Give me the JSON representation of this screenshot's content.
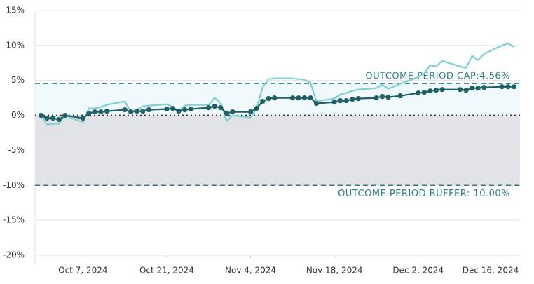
{
  "chart_data": {
    "type": "line",
    "x": [
      "2024-09-30",
      "2024-10-01",
      "2024-10-02",
      "2024-10-03",
      "2024-10-04",
      "2024-10-07",
      "2024-10-08",
      "2024-10-09",
      "2024-10-10",
      "2024-10-11",
      "2024-10-14",
      "2024-10-15",
      "2024-10-16",
      "2024-10-17",
      "2024-10-18",
      "2024-10-21",
      "2024-10-22",
      "2024-10-23",
      "2024-10-24",
      "2024-10-25",
      "2024-10-28",
      "2024-10-29",
      "2024-10-30",
      "2024-10-31",
      "2024-11-01",
      "2024-11-04",
      "2024-11-05",
      "2024-11-06",
      "2024-11-07",
      "2024-11-08",
      "2024-11-11",
      "2024-11-12",
      "2024-11-13",
      "2024-11-14",
      "2024-11-15",
      "2024-11-18",
      "2024-11-19",
      "2024-11-20",
      "2024-11-21",
      "2024-11-22",
      "2024-11-25",
      "2024-11-26",
      "2024-11-27",
      "2024-11-29",
      "2024-12-02",
      "2024-12-03",
      "2024-12-04",
      "2024-12-05",
      "2024-12-06",
      "2024-12-09",
      "2024-12-10",
      "2024-12-11",
      "2024-12-12",
      "2024-12-13",
      "2024-12-16",
      "2024-12-17",
      "2024-12-18"
    ],
    "series": [
      {
        "color": "#7fcfd9",
        "markers": false,
        "values": [
          0.0,
          -1.3,
          -1.2,
          -1.2,
          0.0,
          -1.0,
          1.0,
          1.0,
          1.2,
          1.5,
          2.0,
          0.5,
          0.8,
          1.3,
          1.4,
          1.6,
          1.2,
          0.6,
          1.4,
          1.5,
          1.5,
          2.5,
          1.8,
          -0.8,
          0.0,
          -0.3,
          1.0,
          4.0,
          5.2,
          5.3,
          5.3,
          5.2,
          5.1,
          4.7,
          2.0,
          2.4,
          3.0,
          3.2,
          3.5,
          3.7,
          3.9,
          4.4,
          3.8,
          4.5,
          5.5,
          6.0,
          7.2,
          7.0,
          7.8,
          7.0,
          6.8,
          8.5,
          7.9,
          8.8,
          10.0,
          10.3,
          9.8
        ]
      },
      {
        "color": "#1f5f66",
        "markers": true,
        "values": [
          0.0,
          -0.4,
          -0.4,
          -0.6,
          0.0,
          -0.4,
          0.3,
          0.5,
          0.5,
          0.6,
          0.8,
          0.5,
          0.6,
          0.6,
          0.8,
          0.9,
          1.0,
          0.6,
          0.8,
          0.9,
          1.1,
          1.3,
          1.1,
          0.3,
          0.5,
          0.5,
          1.0,
          2.0,
          2.4,
          2.5,
          2.5,
          2.5,
          2.5,
          2.5,
          1.7,
          1.9,
          2.1,
          2.1,
          2.3,
          2.4,
          2.5,
          2.7,
          2.6,
          2.8,
          3.2,
          3.3,
          3.5,
          3.6,
          3.7,
          3.7,
          3.6,
          3.9,
          3.9,
          4.0,
          4.1,
          4.1,
          4.1
        ]
      }
    ],
    "xlim": [
      "2024-09-29",
      "2024-12-19"
    ],
    "xticks": [
      {
        "value": "2024-10-07",
        "label": "Oct 7, 2024"
      },
      {
        "value": "2024-10-21",
        "label": "Oct 21, 2024"
      },
      {
        "value": "2024-11-04",
        "label": "Nov 4, 2024"
      },
      {
        "value": "2024-11-18",
        "label": "Nov 18, 2024"
      },
      {
        "value": "2024-12-02",
        "label": "Dec 2, 2024"
      },
      {
        "value": "2024-12-16",
        "label": "Dec 16, 2024"
      }
    ],
    "ylim": [
      -20,
      15
    ],
    "yticks": [
      {
        "value": -20,
        "label": "-20%"
      },
      {
        "value": -15,
        "label": "-15%"
      },
      {
        "value": -10,
        "label": "-10%"
      },
      {
        "value": -5,
        "label": "-5%"
      },
      {
        "value": 0,
        "label": "0%"
      },
      {
        "value": 5,
        "label": "5%"
      },
      {
        "value": 10,
        "label": "10%"
      },
      {
        "value": 15,
        "label": "15%"
      }
    ],
    "grid": true,
    "zero_line": "dotted",
    "reference_lines": [
      {
        "value": 4.56,
        "label": "OUTCOME PERIOD CAP:4.56%",
        "color": "#2b7f8a",
        "shade_to_zero": "#f0f9fb"
      },
      {
        "value": -10,
        "label": "OUTCOME PERIOD BUFFER: 10.00%",
        "color": "#2b7f8a",
        "shade_to_zero": "#e1e3e6"
      }
    ]
  }
}
